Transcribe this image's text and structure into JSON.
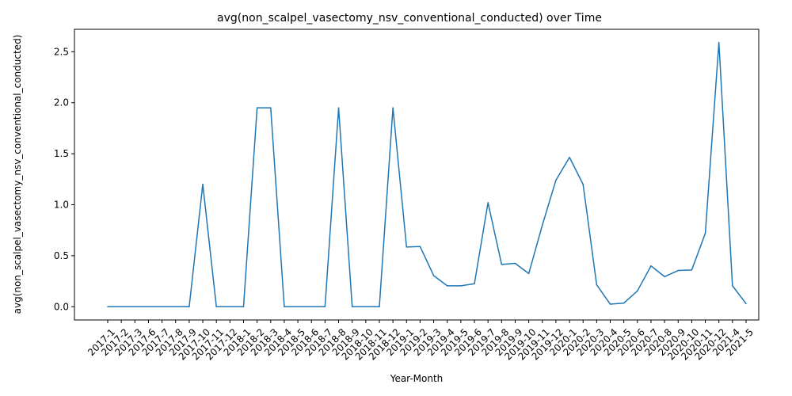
{
  "chart_data": {
    "type": "line",
    "title": "avg(non_scalpel_vasectomy_nsv_conventional_conducted) over Time",
    "xlabel": "Year-Month",
    "ylabel": "avg(non_scalpel_vasectomy_nsv_conventional_conducted)",
    "ylim": [
      -0.13,
      2.72
    ],
    "yticks": [
      "0.0",
      "0.5",
      "1.0",
      "1.5",
      "2.0",
      "2.5"
    ],
    "grid": false,
    "line_color": "#1f77b4",
    "categories": [
      "2017-1",
      "2017-2",
      "2017-3",
      "2017-6",
      "2017-7",
      "2017-8",
      "2017-9",
      "2017-10",
      "2017-11",
      "2017-12",
      "2018-1",
      "2018-2",
      "2018-3",
      "2018-4",
      "2018-5",
      "2018-6",
      "2018-7",
      "2018-8",
      "2018-9",
      "2018-10",
      "2018-11",
      "2018-12",
      "2019-1",
      "2019-2",
      "2019-3",
      "2019-4",
      "2019-5",
      "2019-6",
      "2019-7",
      "2019-8",
      "2019-9",
      "2019-10",
      "2019-11",
      "2019-12",
      "2020-1",
      "2020-2",
      "2020-3",
      "2020-4",
      "2020-5",
      "2020-6",
      "2020-7",
      "2020-8",
      "2020-9",
      "2020-10",
      "2020-11",
      "2020-12",
      "2021-4",
      "2021-5"
    ],
    "values": [
      0,
      0,
      0,
      0,
      0,
      0,
      0,
      1.2,
      0,
      0,
      0,
      1.95,
      1.95,
      0,
      0,
      0,
      0,
      1.95,
      0,
      0,
      0,
      1.95,
      0.585,
      0.59,
      0.305,
      0.205,
      0.205,
      0.225,
      1.02,
      0.415,
      0.425,
      0.325,
      0.8,
      1.24,
      1.465,
      1.2,
      0.215,
      0.025,
      0.035,
      0.155,
      0.4,
      0.295,
      0.355,
      0.36,
      0.72,
      2.59,
      0.205,
      0.03
    ]
  }
}
